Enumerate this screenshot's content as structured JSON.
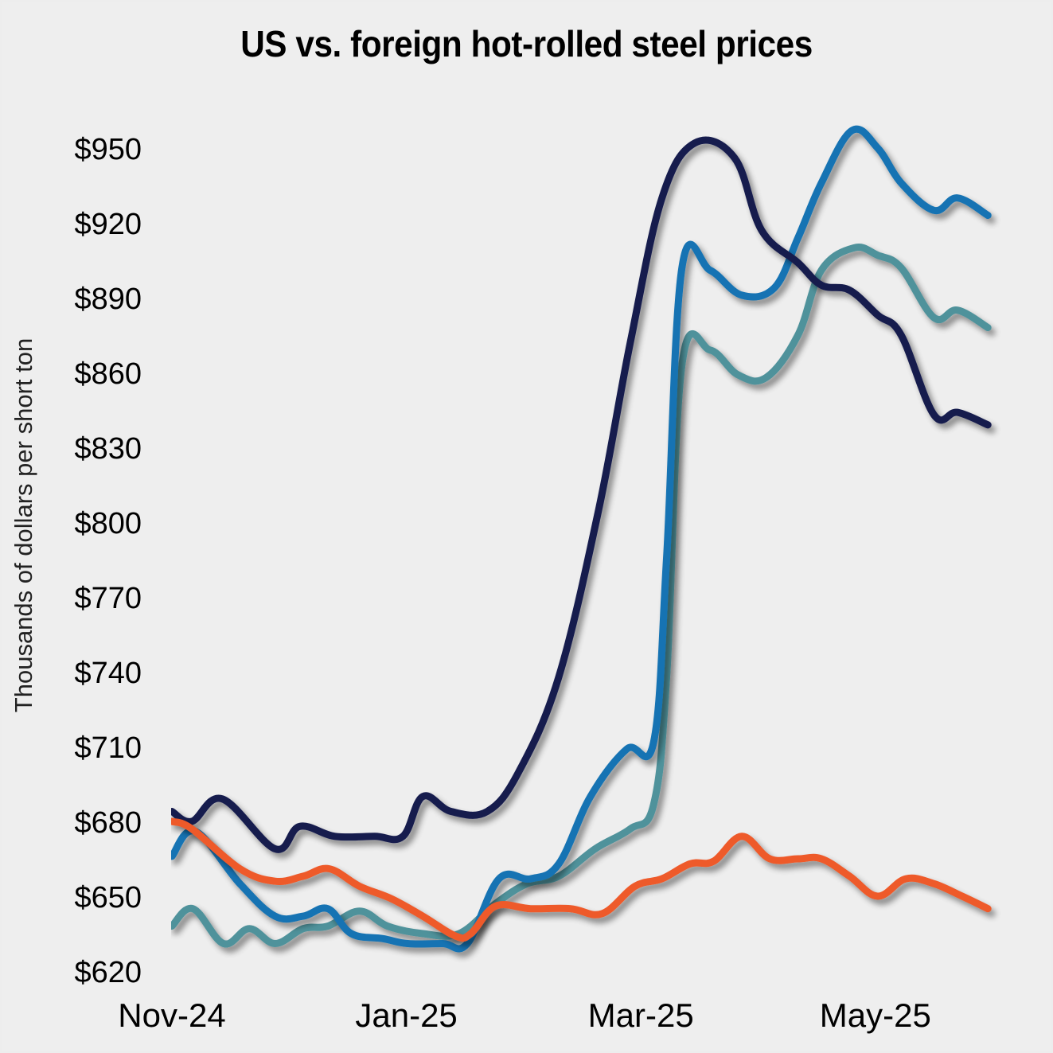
{
  "chart_data": {
    "type": "line",
    "title": "US vs. foreign hot-rolled steel prices",
    "xlabel": "",
    "ylabel": "Thousands of dollars per short ton",
    "x_unit": "months since Nov 1, 2024",
    "x_ticks": [
      {
        "x": 0,
        "label": "Nov-24"
      },
      {
        "x": 2,
        "label": "Jan-25"
      },
      {
        "x": 4,
        "label": "Mar-25"
      },
      {
        "x": 6,
        "label": "May-25"
      }
    ],
    "xlim": [
      0,
      6.95
    ],
    "y_ticks": [
      620,
      650,
      680,
      710,
      740,
      770,
      800,
      830,
      860,
      890,
      920,
      950
    ],
    "y_tick_format": "$",
    "ylim": [
      620,
      955
    ],
    "grid": false,
    "legend": "none",
    "series": [
      {
        "name": "navy-series",
        "color": "#151B4E",
        "points": [
          [
            0,
            684
          ],
          [
            0.17,
            680
          ],
          [
            0.43,
            689
          ],
          [
            0.88,
            669
          ],
          [
            1.09,
            678
          ],
          [
            1.39,
            674
          ],
          [
            1.73,
            674
          ],
          [
            1.97,
            674
          ],
          [
            2.14,
            690
          ],
          [
            2.38,
            684
          ],
          [
            2.69,
            684
          ],
          [
            2.96,
            700
          ],
          [
            3.3,
            738
          ],
          [
            3.64,
            805
          ],
          [
            3.91,
            872
          ],
          [
            4.18,
            930
          ],
          [
            4.46,
            952
          ],
          [
            4.8,
            946
          ],
          [
            5.03,
            917
          ],
          [
            5.34,
            904
          ],
          [
            5.54,
            895
          ],
          [
            5.78,
            893
          ],
          [
            6.02,
            883
          ],
          [
            6.22,
            875
          ],
          [
            6.5,
            843
          ],
          [
            6.7,
            844
          ],
          [
            6.96,
            839
          ]
        ]
      },
      {
        "name": "blue-series",
        "color": "#1373B3",
        "points": [
          [
            0,
            666
          ],
          [
            0.2,
            676
          ],
          [
            0.58,
            655
          ],
          [
            0.88,
            642
          ],
          [
            1.12,
            642
          ],
          [
            1.33,
            645
          ],
          [
            1.53,
            635
          ],
          [
            1.8,
            633
          ],
          [
            2.01,
            631
          ],
          [
            2.31,
            631
          ],
          [
            2.52,
            631
          ],
          [
            2.79,
            657
          ],
          [
            3.06,
            657
          ],
          [
            3.3,
            663
          ],
          [
            3.57,
            690
          ],
          [
            3.88,
            709
          ],
          [
            4.11,
            712
          ],
          [
            4.22,
            786
          ],
          [
            4.35,
            902
          ],
          [
            4.59,
            901
          ],
          [
            4.86,
            891
          ],
          [
            5.14,
            894
          ],
          [
            5.34,
            914
          ],
          [
            5.54,
            936
          ],
          [
            5.8,
            957
          ],
          [
            6.02,
            950
          ],
          [
            6.22,
            936
          ],
          [
            6.5,
            925
          ],
          [
            6.7,
            930
          ],
          [
            6.96,
            923
          ]
        ]
      },
      {
        "name": "teal-series",
        "color": "#4F929B",
        "points": [
          [
            0,
            638
          ],
          [
            0.18,
            645
          ],
          [
            0.44,
            631
          ],
          [
            0.66,
            637
          ],
          [
            0.88,
            631
          ],
          [
            1.12,
            637
          ],
          [
            1.33,
            638
          ],
          [
            1.6,
            644
          ],
          [
            1.84,
            638
          ],
          [
            2.14,
            635
          ],
          [
            2.45,
            635
          ],
          [
            2.76,
            647
          ],
          [
            3.03,
            655
          ],
          [
            3.3,
            658
          ],
          [
            3.61,
            669
          ],
          [
            3.91,
            677
          ],
          [
            4.11,
            687
          ],
          [
            4.22,
            738
          ],
          [
            4.35,
            863
          ],
          [
            4.59,
            869
          ],
          [
            4.83,
            859
          ],
          [
            5.07,
            858
          ],
          [
            5.34,
            875
          ],
          [
            5.54,
            901
          ],
          [
            5.82,
            910
          ],
          [
            6.02,
            907
          ],
          [
            6.22,
            902
          ],
          [
            6.5,
            882
          ],
          [
            6.7,
            885
          ],
          [
            6.96,
            878
          ]
        ]
      },
      {
        "name": "orange-series",
        "color": "#EE5A2A",
        "points": [
          [
            0,
            680
          ],
          [
            0.17,
            677
          ],
          [
            0.58,
            661
          ],
          [
            0.88,
            656
          ],
          [
            1.12,
            658
          ],
          [
            1.34,
            661
          ],
          [
            1.6,
            654
          ],
          [
            1.87,
            649
          ],
          [
            2.14,
            642
          ],
          [
            2.42,
            634
          ],
          [
            2.55,
            635
          ],
          [
            2.76,
            646
          ],
          [
            3.06,
            645
          ],
          [
            3.4,
            645
          ],
          [
            3.67,
            643
          ],
          [
            3.95,
            654
          ],
          [
            4.18,
            657
          ],
          [
            4.42,
            663
          ],
          [
            4.62,
            664
          ],
          [
            4.86,
            674
          ],
          [
            5.1,
            665
          ],
          [
            5.34,
            665
          ],
          [
            5.54,
            665
          ],
          [
            5.78,
            658
          ],
          [
            6.02,
            650
          ],
          [
            6.26,
            657
          ],
          [
            6.5,
            655
          ],
          [
            6.74,
            650
          ],
          [
            6.96,
            645
          ]
        ]
      }
    ]
  }
}
